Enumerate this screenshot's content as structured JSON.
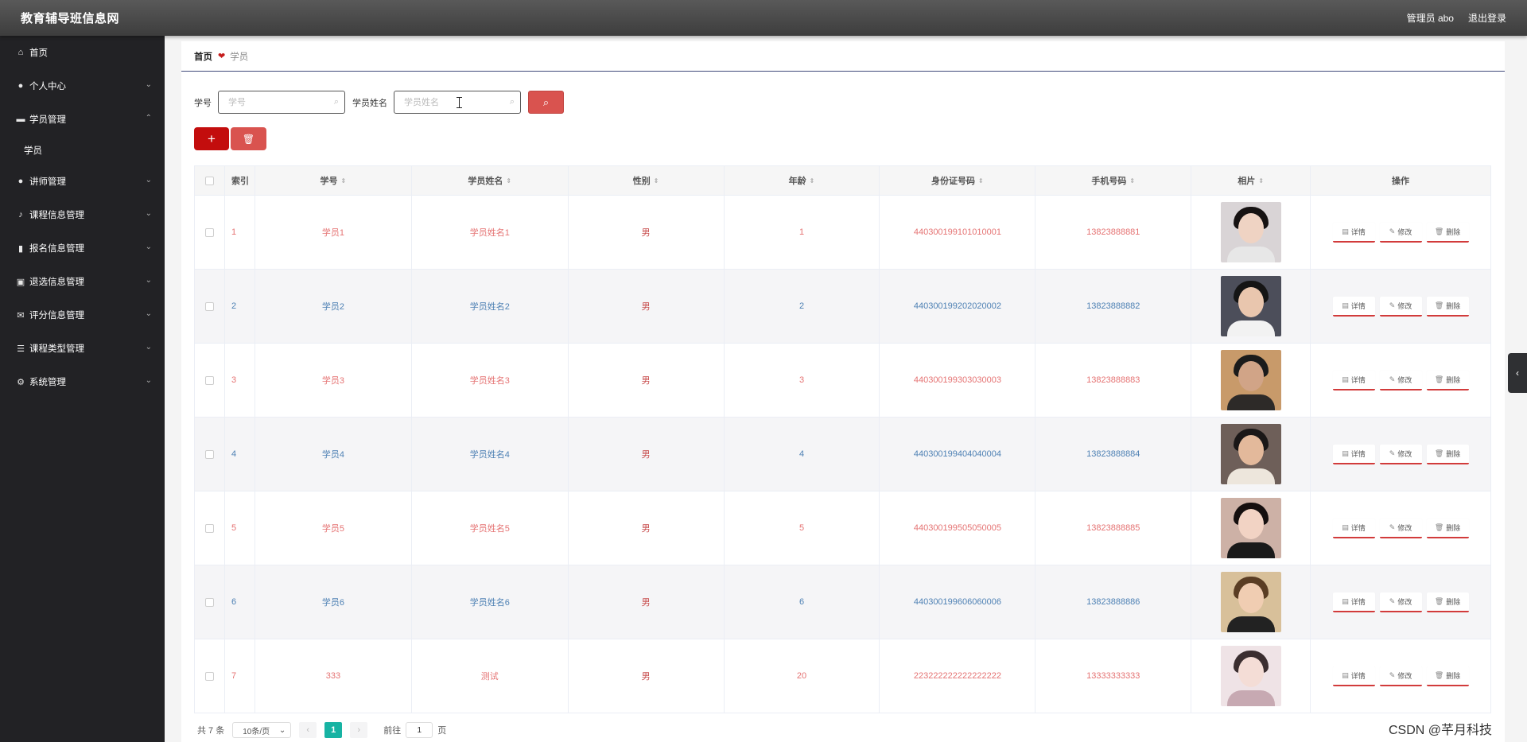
{
  "header": {
    "brand": "教育辅导班信息网",
    "user": "管理员 abo",
    "logout": "退出登录"
  },
  "sidebar": {
    "items": [
      {
        "label": "首页",
        "icon": "home-icon"
      },
      {
        "label": "个人中心",
        "icon": "user-icon"
      },
      {
        "label": "学员管理",
        "icon": "chat-icon"
      },
      {
        "label": "讲师管理",
        "icon": "location-icon"
      },
      {
        "label": "课程信息管理",
        "icon": "mic-icon"
      },
      {
        "label": "报名信息管理",
        "icon": "bar-chart-icon"
      },
      {
        "label": "退选信息管理",
        "icon": "clipboard-icon"
      },
      {
        "label": "评分信息管理",
        "icon": "mail-icon"
      },
      {
        "label": "课程类型管理",
        "icon": "list-icon"
      },
      {
        "label": "系统管理",
        "icon": "settings-icon"
      }
    ],
    "sub_student": "学员"
  },
  "breadcrumb": {
    "home": "首页",
    "current": "学员"
  },
  "search": {
    "label1": "学号",
    "placeholder1": "学号",
    "label2": "学员姓名",
    "placeholder2": "学员姓名"
  },
  "table": {
    "headers": [
      "索引",
      "学号",
      "学员姓名",
      "性别",
      "年龄",
      "身份证号码",
      "手机号码",
      "相片",
      "操作"
    ],
    "rows": [
      {
        "index": "1",
        "id": "学员1",
        "name": "学员姓名1",
        "gender": "男",
        "age": "1",
        "idcard": "440300199101010001",
        "phone": "13823888881"
      },
      {
        "index": "2",
        "id": "学员2",
        "name": "学员姓名2",
        "gender": "男",
        "age": "2",
        "idcard": "440300199202020002",
        "phone": "13823888882"
      },
      {
        "index": "3",
        "id": "学员3",
        "name": "学员姓名3",
        "gender": "男",
        "age": "3",
        "idcard": "440300199303030003",
        "phone": "13823888883"
      },
      {
        "index": "4",
        "id": "学员4",
        "name": "学员姓名4",
        "gender": "男",
        "age": "4",
        "idcard": "440300199404040004",
        "phone": "13823888884"
      },
      {
        "index": "5",
        "id": "学员5",
        "name": "学员姓名5",
        "gender": "男",
        "age": "5",
        "idcard": "440300199505050005",
        "phone": "13823888885"
      },
      {
        "index": "6",
        "id": "学员6",
        "name": "学员姓名6",
        "gender": "男",
        "age": "6",
        "idcard": "440300199606060006",
        "phone": "13823888886"
      },
      {
        "index": "7",
        "id": "333",
        "name": "测试",
        "gender": "男",
        "age": "20",
        "idcard": "223222222222222222",
        "phone": "13333333333"
      }
    ],
    "ops": {
      "detail": "详情",
      "edit": "修改",
      "delete": "删除"
    }
  },
  "pagination": {
    "total": "共 7 条",
    "page_size": "10条/页",
    "current_page": "1",
    "goto_label": "前往",
    "goto_value": "1",
    "page_suffix": "页"
  },
  "watermark": "CSDN @芊月科技",
  "colors": {
    "topbar": "#4a4a4a",
    "sidebar": "#222225",
    "primary_red": "#c30d0d",
    "button_red": "#d9534f",
    "pager_active": "#17b3a3"
  }
}
